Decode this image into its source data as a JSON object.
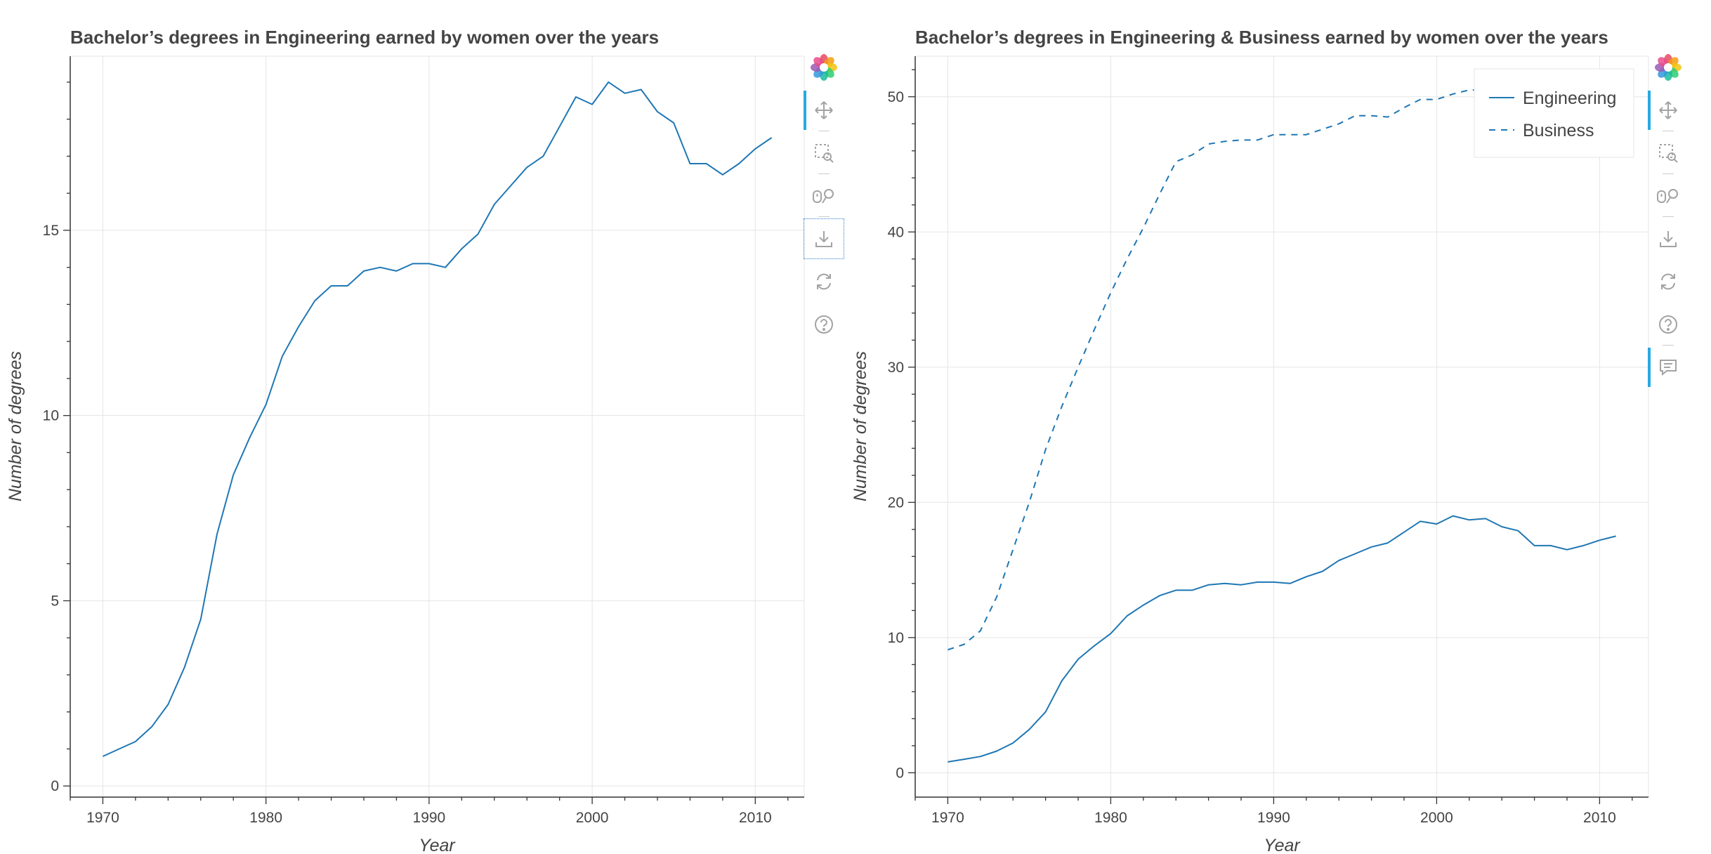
{
  "chart_data": [
    {
      "type": "line",
      "title": "Bachelor’s degrees in Engineering earned by women over the years",
      "xlabel": "Year",
      "ylabel": "Number of degrees",
      "xlim": [
        1968,
        2013
      ],
      "ylim": [
        -0.3,
        19.7
      ],
      "x_ticks": [
        1970,
        1980,
        1990,
        2000,
        2010
      ],
      "y_ticks": [
        0,
        5,
        10,
        15
      ],
      "grid": true,
      "legend": null,
      "x": [
        1970,
        1971,
        1972,
        1973,
        1974,
        1975,
        1976,
        1977,
        1978,
        1979,
        1980,
        1981,
        1982,
        1983,
        1984,
        1985,
        1986,
        1987,
        1988,
        1989,
        1990,
        1991,
        1992,
        1993,
        1994,
        1995,
        1996,
        1997,
        1998,
        1999,
        2000,
        2001,
        2002,
        2003,
        2004,
        2005,
        2006,
        2007,
        2008,
        2009,
        2010,
        2011
      ],
      "series": [
        {
          "style": "solid",
          "color": "#1f77b4",
          "values": [
            0.8,
            1.0,
            1.2,
            1.6,
            2.2,
            3.2,
            4.5,
            6.8,
            8.4,
            9.4,
            10.3,
            11.6,
            12.4,
            13.1,
            13.5,
            13.5,
            13.9,
            14.0,
            13.9,
            14.1,
            14.1,
            14.0,
            14.5,
            14.9,
            15.7,
            16.2,
            16.7,
            17.0,
            17.8,
            18.6,
            18.4,
            19.0,
            18.7,
            18.8,
            18.2,
            17.9,
            16.8,
            16.8,
            16.5,
            16.8,
            17.2,
            17.5
          ]
        }
      ]
    },
    {
      "type": "line",
      "title": "Bachelor’s degrees in Engineering & Business earned by women over the years",
      "xlabel": "Year",
      "ylabel": "Number of degrees",
      "xlim": [
        1968,
        2013
      ],
      "ylim": [
        -1.8,
        53
      ],
      "x_ticks": [
        1970,
        1980,
        1990,
        2000,
        2010
      ],
      "y_ticks": [
        0,
        10,
        20,
        30,
        40,
        50
      ],
      "grid": true,
      "legend": "top-right",
      "x": [
        1970,
        1971,
        1972,
        1973,
        1974,
        1975,
        1976,
        1977,
        1978,
        1979,
        1980,
        1981,
        1982,
        1983,
        1984,
        1985,
        1986,
        1987,
        1988,
        1989,
        1990,
        1991,
        1992,
        1993,
        1994,
        1995,
        1996,
        1997,
        1998,
        1999,
        2000,
        2001,
        2002,
        2003,
        2004,
        2005,
        2006,
        2007,
        2008,
        2009,
        2010,
        2011
      ],
      "series": [
        {
          "name": "Engineering",
          "style": "solid",
          "color": "#1f77b4",
          "values": [
            0.8,
            1.0,
            1.2,
            1.6,
            2.2,
            3.2,
            4.5,
            6.8,
            8.4,
            9.4,
            10.3,
            11.6,
            12.4,
            13.1,
            13.5,
            13.5,
            13.9,
            14.0,
            13.9,
            14.1,
            14.1,
            14.0,
            14.5,
            14.9,
            15.7,
            16.2,
            16.7,
            17.0,
            17.8,
            18.6,
            18.4,
            19.0,
            18.7,
            18.8,
            18.2,
            17.9,
            16.8,
            16.8,
            16.5,
            16.8,
            17.2,
            17.5
          ]
        },
        {
          "name": "Business",
          "style": "dashed",
          "color": "#1f77b4",
          "values": [
            9.1,
            9.5,
            10.5,
            13.0,
            16.5,
            20.0,
            23.9,
            27.1,
            30.0,
            32.8,
            35.5,
            38.0,
            40.3,
            42.8,
            45.2,
            45.7,
            46.5,
            46.7,
            46.8,
            46.8,
            47.2,
            47.2,
            47.2,
            47.6,
            48.0,
            48.6,
            48.6,
            48.5,
            49.2,
            49.8,
            49.8,
            50.2,
            50.5,
            50.5,
            50.3,
            50.0,
            49.8,
            49.6,
            49.4,
            49.3,
            49.0,
            48.8
          ]
        }
      ]
    }
  ],
  "toolbars": [
    {
      "tools": [
        {
          "icon": "bokeh-logo-icon",
          "active": false
        },
        {
          "icon": "pan-icon",
          "active": true
        },
        {
          "icon": "box-zoom-icon",
          "active": false
        },
        {
          "icon": "wheel-zoom-icon",
          "active": false
        },
        {
          "icon": "save-icon",
          "active": false,
          "focused": true
        },
        {
          "icon": "reset-icon",
          "active": false
        },
        {
          "icon": "help-icon",
          "active": false
        }
      ]
    },
    {
      "tools": [
        {
          "icon": "bokeh-logo-icon",
          "active": false
        },
        {
          "icon": "pan-icon",
          "active": true
        },
        {
          "icon": "box-zoom-icon",
          "active": false
        },
        {
          "icon": "wheel-zoom-icon",
          "active": false
        },
        {
          "icon": "save-icon",
          "active": false
        },
        {
          "icon": "reset-icon",
          "active": false
        },
        {
          "icon": "help-icon",
          "active": false
        },
        {
          "icon": "hover-icon",
          "active": true
        }
      ]
    }
  ]
}
